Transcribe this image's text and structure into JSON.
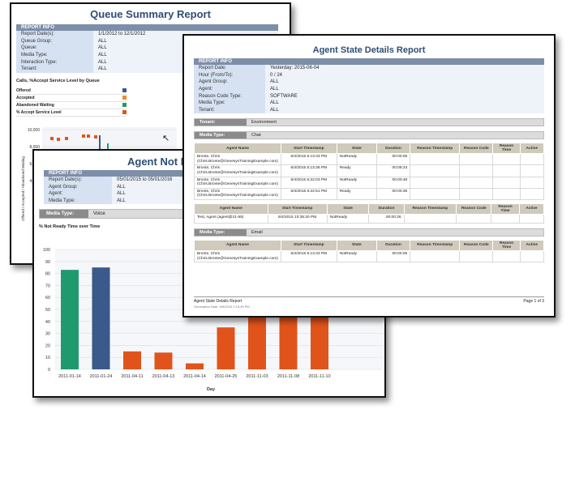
{
  "queue": {
    "title": "Queue Summary Report",
    "info_header": "REPORT INFO",
    "info": [
      {
        "k": "Report Date(s):",
        "v": "1/1/2012  to  12/1/2012"
      },
      {
        "k": "Queue Group:",
        "v": "ALL"
      },
      {
        "k": "Queue:",
        "v": "ALL"
      },
      {
        "k": "Media Type:",
        "v": "ALL"
      },
      {
        "k": "Interaction Type:",
        "v": "ALL"
      },
      {
        "k": "Tenant:",
        "v": "ALL"
      }
    ],
    "chart_title": "Calls, %Accept Service Level by Queue",
    "legend": [
      {
        "label": "Offered",
        "color": "#3a5a8c"
      },
      {
        "label": "Accepted",
        "color": "#f08a2c"
      },
      {
        "label": "Abandoned Waiting",
        "color": "#1f9a6f"
      },
      {
        "label": "% Accept Service Level",
        "color": "#e0541c"
      }
    ],
    "ylabel": "Offered / Accepted / Abandoned Waiting",
    "yticks": [
      "10,000",
      "8,000",
      "6,000",
      "4,000"
    ]
  },
  "agent_not_ready": {
    "title": "Agent Not Re",
    "info_header": "REPORT INFO",
    "info": [
      {
        "k": "Report Date(s):",
        "v": "05/01/2015 to 05/01/2016"
      },
      {
        "k": "Agent Group:",
        "v": "ALL"
      },
      {
        "k": "Agent:",
        "v": "ALL"
      },
      {
        "k": "Media Type:",
        "v": "ALL"
      }
    ],
    "media_label": "Media Type:",
    "media_value": "Voice",
    "chart_title": "% Not Ready Time over Time"
  },
  "chart_data": {
    "type": "bar",
    "title": "% Not Ready Time over Time",
    "xlabel": "Day",
    "ylabel": "",
    "ylim": [
      0,
      100
    ],
    "yticks": [
      0,
      10,
      20,
      30,
      40,
      50,
      60,
      70,
      80,
      90,
      100
    ],
    "categories": [
      "2011-01-14",
      "2011-01-24",
      "2011-04-11",
      "2011-04-13",
      "2011-04-14",
      "2011-04-25",
      "2011-11-03",
      "2011-11-08",
      "2011-11-10"
    ],
    "values": [
      83,
      85,
      15,
      14,
      5,
      35,
      100,
      100,
      100
    ],
    "colors": [
      "#1f9a6f",
      "#3a5a8c",
      "#e0541c",
      "#e0541c",
      "#e0541c",
      "#e0541c",
      "#e0541c",
      "#e0541c",
      "#e0541c"
    ]
  },
  "agent_state": {
    "title": "Agent State Details Report",
    "info_header": "REPORT INFO",
    "info": [
      {
        "k": "Report Date:",
        "v": "Yesterday: 2015-06-04"
      },
      {
        "k": "Hour (From/To):",
        "v": "0 / 24"
      },
      {
        "k": "Agent Group:",
        "v": "ALL"
      },
      {
        "k": "Agent:",
        "v": "ALL"
      },
      {
        "k": "Reason Code Type:",
        "v": "SOFTWARE"
      },
      {
        "k": "Media Type:",
        "v": "ALL"
      },
      {
        "k": "Tenant:",
        "v": "ALL"
      }
    ],
    "tenant_label": "Tenant:",
    "tenant_value": "Environment",
    "media_label": "Media Type:",
    "media_chat": "Chat",
    "media_email": "Email",
    "columns": [
      "Agent Name",
      "Start Timestamp",
      "State",
      "Duration",
      "Reason Timestamp",
      "Reason Code",
      "Reason Time",
      "Active"
    ],
    "chat_rows": [
      {
        "name": "Bronte, Chris (Chris.Bronte@GenesysTrainingExample.com)",
        "start": "6/4/2015 5:13:33 PM",
        "state": "NotReady",
        "duration": "00:00:05"
      },
      {
        "name": "Bronte, Chris (Chris.Bronte@GenesysTrainingExample.com)",
        "start": "6/4/2015 5:13:38 PM",
        "state": "Ready",
        "duration": "00:08:23"
      },
      {
        "name": "Bronte, Chris (Chris.Bronte@GenesysTrainingExample.com)",
        "start": "6/4/2015 5:22:03 PM",
        "state": "NotReady",
        "duration": "00:00:48"
      },
      {
        "name": "Bronte, Chris (Chris.Bronte@GenesysTrainingExample.com)",
        "start": "6/4/2015 5:22:51 PM",
        "state": "Ready",
        "duration": "00:00:36"
      }
    ],
    "chat_rows2": [
      {
        "name": "Test, Agent (agent@21-55)",
        "start": "6/4/2015 10:35:20 PM",
        "state": "NotReady",
        "duration": "00:00:26"
      }
    ],
    "email_rows": [
      {
        "name": "Bronte, Chris (Chris.Bronte@GenesysTrainingExample.com)",
        "start": "6/4/2015 5:13:33 PM",
        "state": "NotReady",
        "duration": "00:00:05"
      }
    ],
    "footer_left": "Agent State Details Report",
    "footer_right": "Page 1 of 3",
    "generation": "Generation Date: 6/5/2015 2:15:35 PM"
  }
}
